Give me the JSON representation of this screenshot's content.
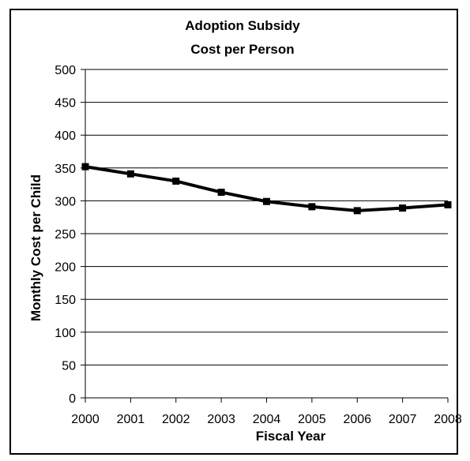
{
  "chart_data": {
    "type": "line",
    "title": "Adoption Subsidy",
    "subtitle": "Cost per Person",
    "xlabel": "Fiscal Year",
    "ylabel": "Monthly Cost per Child",
    "categories": [
      "2000",
      "2001",
      "2002",
      "2003",
      "2004",
      "2005",
      "2006",
      "2007",
      "2008"
    ],
    "series": [
      {
        "values": [
          352,
          341,
          330,
          313,
          299,
          291,
          285,
          289,
          294
        ]
      }
    ],
    "ylim": [
      0,
      500
    ],
    "yticks": [
      0,
      50,
      100,
      150,
      200,
      250,
      300,
      350,
      400,
      450,
      500
    ],
    "grid": true,
    "legend": "none",
    "line_color": "#000000",
    "marker": "square"
  }
}
